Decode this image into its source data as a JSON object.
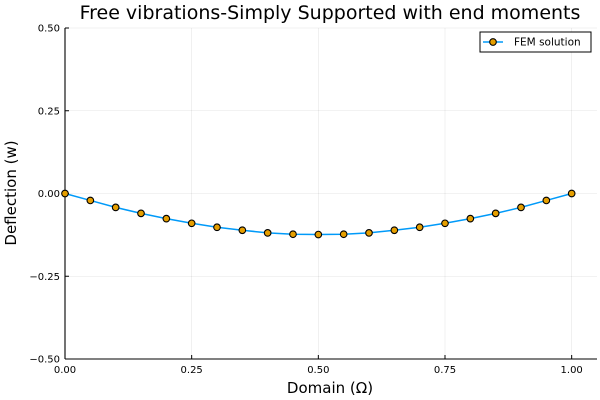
{
  "chart_data": {
    "type": "line",
    "title": "Free vibrations-Simply Supported with end moments",
    "xlabel": "Domain (Ω)",
    "ylabel": "Deflection (w)",
    "xlim": [
      0,
      1.05
    ],
    "ylim": [
      -0.5,
      0.5
    ],
    "xticks": [
      0.0,
      0.25,
      0.5,
      0.75,
      1.0
    ],
    "xtick_labels": [
      "0.00",
      "0.25",
      "0.50",
      "0.75",
      "1.00"
    ],
    "yticks": [
      -0.5,
      -0.25,
      0.0,
      0.25,
      0.5
    ],
    "ytick_labels": [
      "−0.50",
      "−0.25",
      "0.00",
      "0.25",
      "0.50"
    ],
    "grid": true,
    "legend_position": "top-right",
    "series": [
      {
        "name": "FEM solution",
        "line_color": "#009af9",
        "marker_color": "#e69f00",
        "marker_edge": "#000000",
        "x": [
          0.0,
          0.05,
          0.1,
          0.15,
          0.2,
          0.25,
          0.3,
          0.35,
          0.4,
          0.45,
          0.5,
          0.55,
          0.6,
          0.65,
          0.7,
          0.75,
          0.8,
          0.85,
          0.9,
          0.95,
          1.0
        ],
        "y": [
          0.0,
          -0.021,
          -0.042,
          -0.06,
          -0.076,
          -0.09,
          -0.102,
          -0.111,
          -0.119,
          -0.123,
          -0.124,
          -0.123,
          -0.119,
          -0.111,
          -0.102,
          -0.09,
          -0.076,
          -0.06,
          -0.042,
          -0.021,
          0.0
        ]
      }
    ]
  }
}
